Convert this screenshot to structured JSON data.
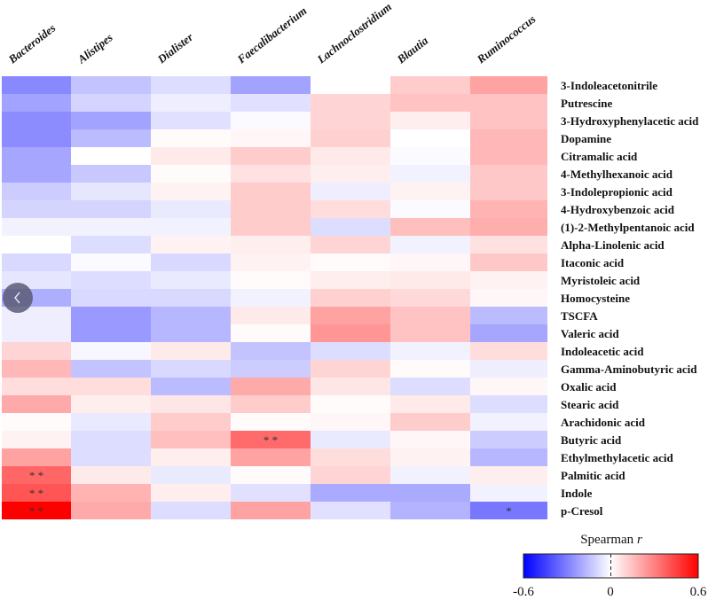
{
  "chart_data": {
    "type": "heatmap",
    "title": "",
    "xlabel": "",
    "ylabel": "",
    "columns": [
      "Bacteroides",
      "Alistipes",
      "Dialister",
      "Faecalibacterium",
      "Lachnoclostridium",
      "Blautia",
      "Ruminococcus"
    ],
    "rows": [
      "3-Indoleacetonitrile",
      "Putrescine",
      "3-Hydroxyphenylacetic acid",
      "Dopamine",
      "Citramalic acid",
      "4-Methylhexanoic acid",
      "3-Indolepropionic acid",
      "4-Hydroxybenzoic acid",
      "(1)-2-Methylpentanoic acid",
      "Alpha-Linolenic acid",
      "Itaconic acid",
      "Myristoleic acid",
      "Homocysteine",
      "TSCFA",
      "Valeric acid",
      "Indoleacetic acid",
      "Gamma-Aminobutyric acid",
      "Oxalic acid",
      "Stearic acid",
      "Arachidonic acid",
      "Butyric acid",
      "Ethylmethylacetic acid",
      "Palmitic acid",
      "Indole",
      "p-Cresol"
    ],
    "values": [
      [
        -0.28,
        -0.14,
        -0.08,
        -0.22,
        0.0,
        0.12,
        0.22
      ],
      [
        -0.22,
        -0.1,
        -0.04,
        -0.07,
        0.1,
        0.14,
        0.14
      ],
      [
        -0.27,
        -0.22,
        -0.07,
        -0.01,
        0.1,
        0.04,
        0.14
      ],
      [
        -0.27,
        -0.16,
        0.01,
        0.02,
        0.11,
        0.0,
        0.17
      ],
      [
        -0.21,
        0.0,
        0.05,
        0.12,
        0.05,
        -0.01,
        0.17
      ],
      [
        -0.21,
        -0.13,
        0.01,
        0.07,
        0.04,
        -0.03,
        0.13
      ],
      [
        -0.12,
        -0.06,
        0.03,
        0.12,
        -0.04,
        0.03,
        0.13
      ],
      [
        -0.1,
        -0.1,
        -0.05,
        0.12,
        0.08,
        -0.01,
        0.18
      ],
      [
        -0.03,
        -0.03,
        -0.03,
        0.12,
        -0.08,
        0.15,
        0.19
      ],
      [
        0.0,
        -0.08,
        0.03,
        0.04,
        0.1,
        -0.03,
        0.07
      ],
      [
        -0.09,
        -0.01,
        -0.09,
        0.03,
        0.01,
        0.02,
        0.13
      ],
      [
        -0.06,
        -0.08,
        -0.05,
        0.01,
        0.04,
        0.05,
        0.03
      ],
      [
        -0.19,
        -0.09,
        -0.09,
        -0.03,
        0.11,
        0.09,
        0.02
      ],
      [
        -0.04,
        -0.24,
        -0.17,
        0.05,
        0.22,
        0.14,
        -0.16
      ],
      [
        -0.04,
        -0.24,
        -0.17,
        0.01,
        0.25,
        0.14,
        -0.21
      ],
      [
        0.1,
        -0.02,
        0.05,
        -0.14,
        -0.08,
        -0.03,
        0.08
      ],
      [
        0.17,
        -0.14,
        -0.09,
        -0.12,
        0.1,
        0.01,
        -0.04
      ],
      [
        0.08,
        0.08,
        -0.16,
        0.2,
        0.06,
        -0.08,
        0.02
      ],
      [
        0.2,
        0.04,
        0.06,
        0.12,
        0.01,
        0.05,
        -0.08
      ],
      [
        0.01,
        -0.05,
        0.12,
        0.01,
        0.02,
        0.12,
        -0.03
      ],
      [
        0.03,
        -0.08,
        0.15,
        0.35,
        -0.05,
        0.02,
        -0.12
      ],
      [
        0.22,
        -0.08,
        0.04,
        0.22,
        0.08,
        0.03,
        -0.17
      ],
      [
        0.36,
        0.05,
        -0.05,
        0.01,
        0.1,
        -0.03,
        0.04
      ],
      [
        0.4,
        0.18,
        0.04,
        -0.07,
        -0.2,
        -0.2,
        -0.03
      ],
      [
        0.6,
        0.2,
        -0.08,
        0.22,
        -0.07,
        -0.18,
        -0.32
      ]
    ],
    "significance": [
      {
        "row": 20,
        "col": 3,
        "mark": "* *"
      },
      {
        "row": 22,
        "col": 0,
        "mark": "* *"
      },
      {
        "row": 23,
        "col": 0,
        "mark": "* *"
      },
      {
        "row": 24,
        "col": 0,
        "mark": "* *"
      },
      {
        "row": 24,
        "col": 6,
        "mark": "*"
      }
    ],
    "colorbar": {
      "title": "Spearman r",
      "title_main": "Spearman ",
      "title_italic": "r",
      "min": -0.6,
      "max": 0.6,
      "ticks": [
        "-0.6",
        "0",
        "0.6"
      ],
      "low_color": "#0000ff",
      "mid_color": "#ffffff",
      "high_color": "#ff0000",
      "placement": "bottom-right"
    }
  },
  "nav": {
    "prev_icon": "chevron-left-icon"
  }
}
